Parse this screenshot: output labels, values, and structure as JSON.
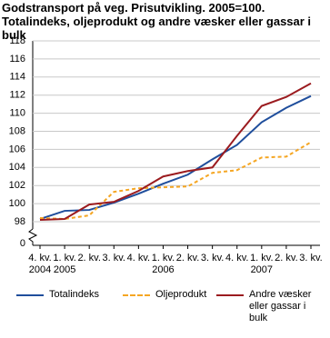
{
  "chart_data": {
    "type": "line",
    "title": "Godstransport på veg. Prisutvikling. 2005=100. Totalindeks, oljeprodukt og andre væsker eller gassar i bulk",
    "categories": [
      "4. kv.",
      "1. kv.",
      "2. kv.",
      "3. kv.",
      "4. kv.",
      "1. kv.",
      "2. kv.",
      "3. kv.",
      "4. kv.",
      "1. kv.",
      "2. kv.",
      "3. kv."
    ],
    "years": [
      "2004",
      "2005",
      null,
      null,
      null,
      "2006",
      null,
      null,
      null,
      "2007",
      null,
      null
    ],
    "series": [
      {
        "name": "Totalindeks",
        "color": "#1f4e9c",
        "dash": false,
        "values": [
          98.3,
          99.2,
          99.3,
          100.1,
          101.1,
          102.2,
          103.2,
          104.9,
          106.5,
          109.0,
          110.6,
          111.9
        ]
      },
      {
        "name": "Oljeprodukt",
        "color": "#f5a623",
        "dash": true,
        "values": [
          98.4,
          98.3,
          98.7,
          101.3,
          101.7,
          101.8,
          101.9,
          103.4,
          103.7,
          105.1,
          105.2,
          106.8
        ]
      },
      {
        "name": "Andre væsker eller gassar i bulk",
        "color": "#9b1b1f",
        "dash": false,
        "values": [
          98.2,
          98.3,
          99.9,
          100.2,
          101.4,
          103.0,
          103.6,
          104.0,
          107.5,
          110.8,
          111.8,
          113.3
        ]
      }
    ],
    "ylim": [
      98,
      118
    ],
    "yticks": [
      98,
      100,
      102,
      104,
      106,
      108,
      110,
      112,
      114,
      116,
      118
    ],
    "axis_break_tick": 0,
    "grid": true
  }
}
